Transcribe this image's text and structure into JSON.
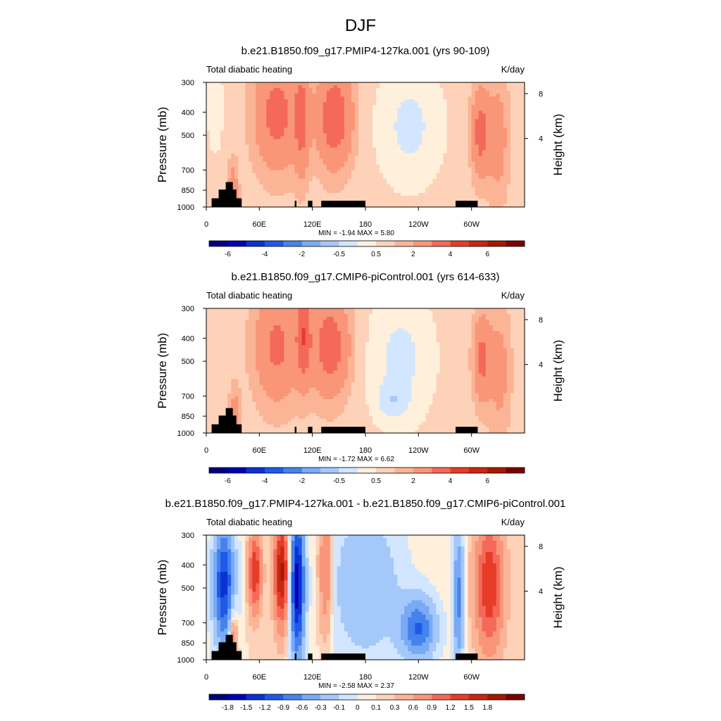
{
  "figure_title": "DJF",
  "chart_data": [
    {
      "type": "heatmap",
      "title": "b.e21.B1850.f09_g17.PMIP4-127ka.001 (yrs 90-109)",
      "left_string": "Total diabatic heating",
      "right_string": "K/day",
      "ylabel": "Pressure (mb)",
      "ylabel_right": "Height (km)",
      "x_ticks": [
        "0",
        "60E",
        "120E",
        "180",
        "120W",
        "60W"
      ],
      "y_ticks": [
        "300",
        "400",
        "500",
        "700",
        "850",
        "1000"
      ],
      "y_right_ticks": [
        "8",
        "4"
      ],
      "stats": "MIN =  -1.94  MAX =   5.80",
      "cbar_labels": [
        "-6",
        "-4",
        "-2",
        "-0.5",
        "0.5",
        "2",
        "4",
        "6"
      ],
      "colorbar": [
        "#00007f",
        "#0000b4",
        "#0a32d2",
        "#1e5ae6",
        "#4682ee",
        "#78aaf5",
        "#a5c8fa",
        "#d2e6ff",
        "#fff0dc",
        "#fdd2b8",
        "#fcb496",
        "#f99678",
        "#f4695a",
        "#e63c28",
        "#c8280f",
        "#a51900",
        "#7d0000"
      ],
      "source_range": [
        -1.94,
        5.8
      ]
    },
    {
      "type": "heatmap",
      "title": "b.e21.B1850.f09_g17.CMIP6-piControl.001 (yrs 614-633)",
      "left_string": "Total diabatic heating",
      "right_string": "K/day",
      "ylabel": "Pressure (mb)",
      "ylabel_right": "Height (km)",
      "x_ticks": [
        "0",
        "60E",
        "120E",
        "180",
        "120W",
        "60W"
      ],
      "y_ticks": [
        "300",
        "400",
        "500",
        "700",
        "850",
        "1000"
      ],
      "y_right_ticks": [
        "8",
        "4"
      ],
      "stats": "MIN =  -1.72  MAX =   6.62",
      "cbar_labels": [
        "-6",
        "-4",
        "-2",
        "-0.5",
        "0.5",
        "2",
        "4",
        "6"
      ],
      "colorbar": [
        "#00007f",
        "#0000b4",
        "#0a32d2",
        "#1e5ae6",
        "#4682ee",
        "#78aaf5",
        "#a5c8fa",
        "#d2e6ff",
        "#fff0dc",
        "#fdd2b8",
        "#fcb496",
        "#f99678",
        "#f4695a",
        "#e63c28",
        "#c8280f",
        "#a51900",
        "#7d0000"
      ],
      "source_range": [
        -1.72,
        6.62
      ]
    },
    {
      "type": "heatmap",
      "title": "b.e21.B1850.f09_g17.PMIP4-127ka.001 - b.e21.B1850.f09_g17.CMIP6-piControl.001",
      "left_string": "Total diabatic heating",
      "right_string": "K/day",
      "ylabel": "Pressure (mb)",
      "ylabel_right": "Height (km)",
      "x_ticks": [
        "0",
        "60E",
        "120E",
        "180",
        "120W",
        "60W"
      ],
      "y_ticks": [
        "300",
        "400",
        "500",
        "700",
        "850",
        "1000"
      ],
      "y_right_ticks": [
        "8",
        "4"
      ],
      "stats": "MIN =  -2.58  MAX =   2.37",
      "cbar_labels": [
        "-1.8",
        "-1.5",
        "-1.2",
        "-0.9",
        "-0.6",
        "-0.3",
        "-0.1",
        "0",
        "0.1",
        "0.3",
        "0.6",
        "0.9",
        "1.2",
        "1.5",
        "1.8"
      ],
      "colorbar": [
        "#00007f",
        "#0000b4",
        "#0a32d2",
        "#1e5ae6",
        "#4682ee",
        "#78aaf5",
        "#a5c8fa",
        "#d2e6ff",
        "#fff0dc",
        "#fdd2b8",
        "#fcb496",
        "#f99678",
        "#f4695a",
        "#e63c28",
        "#c8280f",
        "#a51900",
        "#7d0000"
      ],
      "source_range": [
        -2.58,
        2.37
      ]
    }
  ]
}
